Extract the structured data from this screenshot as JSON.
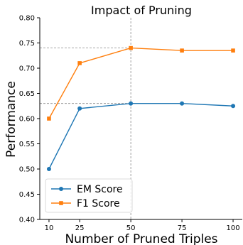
{
  "chart_data": {
    "type": "line",
    "title": "Impact of Pruning",
    "xlabel": "Number of Pruned Triples",
    "ylabel": "Performance",
    "x": [
      10,
      25,
      50,
      75,
      100
    ],
    "xticks": [
      "10",
      "25",
      "50",
      "75",
      "100"
    ],
    "ylim": [
      0.4,
      0.8
    ],
    "yticks": [
      "0.40",
      "0.45",
      "0.50",
      "0.55",
      "0.60",
      "0.65",
      "0.70",
      "0.75",
      "0.80"
    ],
    "grid": false,
    "legend_position": "lower-left",
    "series": [
      {
        "name": "EM Score",
        "values": [
          0.5,
          0.62,
          0.63,
          0.63,
          0.625
        ],
        "color": "#1f77b4",
        "marker": "circle"
      },
      {
        "name": "F1 Score",
        "values": [
          0.6,
          0.71,
          0.74,
          0.735,
          0.735
        ],
        "color": "#ff7f0e",
        "marker": "square"
      }
    ],
    "reference_lines": [
      {
        "orientation": "vertical",
        "x": 50,
        "style": "dashed",
        "color": "#888888"
      },
      {
        "orientation": "horizontal",
        "y": 0.74,
        "x_from": 10,
        "x_to": 50,
        "style": "dashed",
        "color": "#888888"
      },
      {
        "orientation": "horizontal",
        "y": 0.63,
        "x_from": 10,
        "x_to": 50,
        "style": "dashed",
        "color": "#888888"
      }
    ]
  }
}
